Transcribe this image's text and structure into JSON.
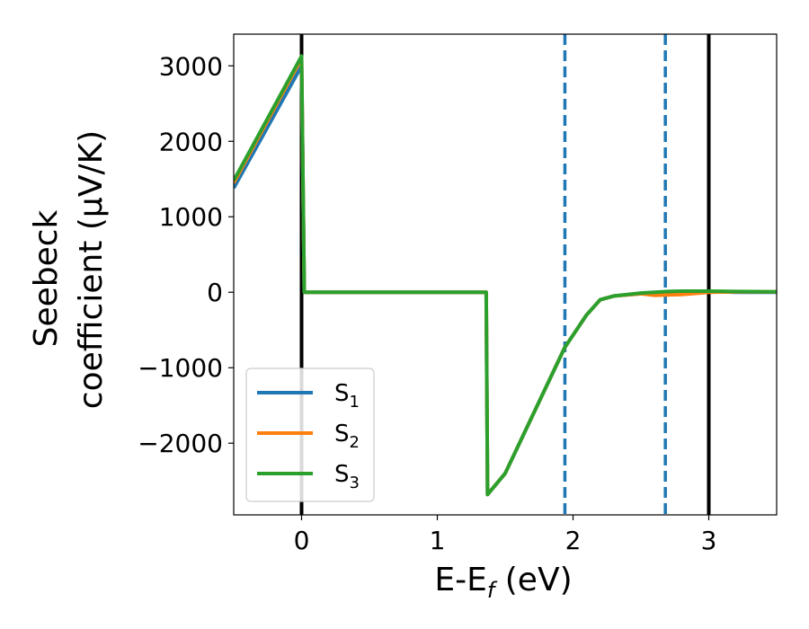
{
  "chart_data": {
    "type": "line",
    "xlabel_main": "E-E",
    "xlabel_sub": "f",
    "xlabel_unit": " (eV)",
    "ylabel_line1": "Seebeck",
    "ylabel_line2": "coefficient  (μV/K)",
    "xlim": [
      -0.5,
      3.5
    ],
    "ylim": [
      -2950,
      3420
    ],
    "xticks": [
      0,
      1,
      2,
      3
    ],
    "xtick_labels": [
      "0",
      "1",
      "2",
      "3"
    ],
    "yticks": [
      -2000,
      -1000,
      0,
      1000,
      2000,
      3000
    ],
    "ytick_labels": [
      "−2000",
      "−1000",
      "0",
      "1000",
      "2000",
      "3000"
    ],
    "grid": false,
    "legend_placement": "lower-left",
    "vlines": [
      {
        "x": 0,
        "style": "solid",
        "color": "#000000"
      },
      {
        "x": 3.0,
        "style": "solid",
        "color": "#000000"
      },
      {
        "x": 1.94,
        "style": "dashed",
        "color": "#1f77b4"
      },
      {
        "x": 2.68,
        "style": "dashed",
        "color": "#1f77b4"
      }
    ],
    "series": [
      {
        "name": "S",
        "sub": "1",
        "color": "#1f77b4",
        "x": [
          -0.5,
          0.0,
          0.02,
          1.36,
          1.37,
          1.5,
          1.94,
          2.1,
          2.2,
          2.3,
          2.5,
          2.7,
          2.8,
          3.0,
          3.2,
          3.5
        ],
        "y": [
          1380,
          3000,
          0,
          0,
          -2680,
          -2400,
          -730,
          -300,
          -100,
          -50,
          -20,
          -20,
          0,
          10,
          0,
          0
        ]
      },
      {
        "name": "S",
        "sub": "2",
        "color": "#ff7f0e",
        "x": [
          -0.5,
          0.0,
          0.02,
          1.36,
          1.37,
          1.5,
          1.94,
          2.1,
          2.2,
          2.3,
          2.5,
          2.6,
          2.8,
          3.0,
          3.2,
          3.5
        ],
        "y": [
          1450,
          3100,
          0,
          0,
          -2680,
          -2400,
          -730,
          -300,
          -100,
          -50,
          -20,
          -40,
          -30,
          0,
          5,
          5
        ]
      },
      {
        "name": "S",
        "sub": "3",
        "color": "#2ca02c",
        "x": [
          -0.5,
          0.0,
          0.02,
          1.36,
          1.37,
          1.5,
          1.94,
          2.1,
          2.2,
          2.3,
          2.5,
          2.7,
          2.8,
          3.0,
          3.2,
          3.5
        ],
        "y": [
          1480,
          3130,
          0,
          0,
          -2680,
          -2400,
          -730,
          -300,
          -100,
          -50,
          -10,
          10,
          15,
          15,
          10,
          5
        ]
      }
    ]
  }
}
